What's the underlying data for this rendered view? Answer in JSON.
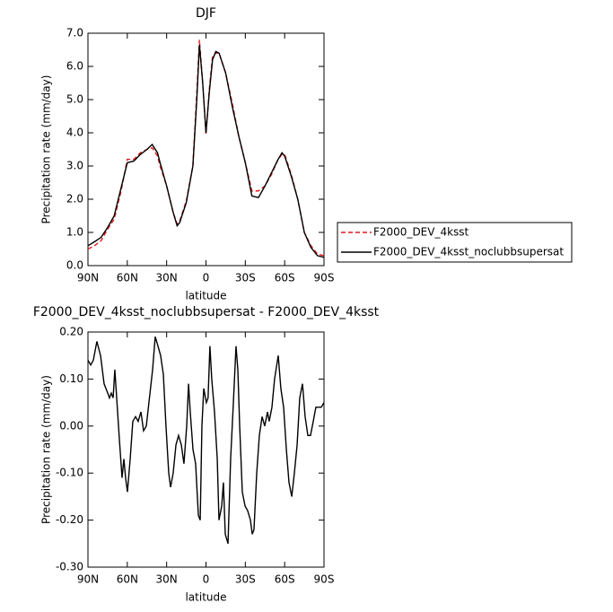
{
  "chart_data": [
    {
      "type": "line",
      "title": "DJF",
      "xlabel": "latitude",
      "ylabel": "Precipitation rate  (mm/day)",
      "x": [
        90,
        85,
        80,
        75,
        70,
        65,
        60,
        55,
        50,
        45,
        41,
        37,
        35,
        30,
        25,
        22,
        20,
        15,
        10,
        7,
        5,
        2.5,
        0,
        -2.5,
        -5,
        -7.5,
        -10,
        -15,
        -20,
        -25,
        -30,
        -35,
        -40,
        -45,
        -50,
        -55,
        -58,
        -60,
        -65,
        -70,
        -75,
        -80,
        -85,
        -90
      ],
      "series": [
        {
          "name": "F2000_DEV_4ksst",
          "color": "#e0191b",
          "dashed": true,
          "values": [
            0.5,
            0.6,
            0.75,
            1.1,
            1.4,
            2.2,
            3.2,
            3.2,
            3.4,
            3.5,
            3.55,
            3.3,
            3.0,
            2.4,
            1.6,
            1.25,
            1.35,
            1.95,
            3.0,
            5.2,
            6.8,
            5.5,
            3.95,
            5.3,
            6.3,
            6.4,
            6.4,
            5.8,
            4.9,
            3.9,
            3.1,
            2.25,
            2.25,
            2.4,
            2.75,
            3.2,
            3.35,
            3.35,
            2.75,
            2.0,
            1.0,
            0.6,
            0.35,
            0.3
          ]
        },
        {
          "name": "F2000_DEV_4ksst_noclubbsupersat",
          "color": "#000000",
          "dashed": false,
          "values": [
            0.6,
            0.72,
            0.85,
            1.15,
            1.5,
            2.3,
            3.1,
            3.15,
            3.35,
            3.5,
            3.65,
            3.4,
            3.1,
            2.4,
            1.6,
            1.2,
            1.3,
            1.9,
            3.0,
            5.0,
            6.65,
            5.5,
            4.0,
            5.2,
            6.2,
            6.45,
            6.4,
            5.8,
            4.8,
            3.9,
            3.1,
            2.1,
            2.05,
            2.4,
            2.8,
            3.2,
            3.4,
            3.3,
            2.7,
            2.0,
            1.0,
            0.55,
            0.3,
            0.25
          ]
        }
      ],
      "xlim": [
        90,
        -90
      ],
      "xticks": [
        {
          "value": 90,
          "label": "90N"
        },
        {
          "value": 60,
          "label": "60N"
        },
        {
          "value": 30,
          "label": "30N"
        },
        0,
        {
          "value": -30,
          "label": "30S"
        },
        {
          "value": -60,
          "label": "60S"
        },
        {
          "value": -90,
          "label": "90S"
        }
      ],
      "ylim": [
        0,
        7
      ],
      "yticks": [
        {
          "value": 0,
          "label": "0.0"
        },
        {
          "value": 1,
          "label": "1.0"
        },
        {
          "value": 2,
          "label": "2.0"
        },
        {
          "value": 3,
          "label": "3.0"
        },
        {
          "value": 4,
          "label": "4.0"
        },
        {
          "value": 5,
          "label": "5.0"
        },
        {
          "value": 6,
          "label": "6.0"
        },
        {
          "value": 7,
          "label": "7.0"
        }
      ],
      "legend": "outside-right"
    },
    {
      "type": "line",
      "title": "F2000_DEV_4ksst_noclubbsupersat - F2000_DEV_4ksst",
      "xlabel": "latitude",
      "ylabel": "Precipitation rate  (mm/day)",
      "x": [
        90.0,
        87.9,
        85.9,
        83.2,
        80.4,
        77.7,
        74.9,
        73.6,
        72.2,
        70.8,
        69.5,
        68.1,
        66.0,
        64.0,
        62.6,
        61.3,
        59.9,
        57.8,
        55.8,
        53.7,
        51.7,
        49.6,
        47.6,
        45.5,
        43.5,
        40.7,
        38.7,
        36.6,
        34.6,
        32.5,
        30.5,
        28.4,
        27.0,
        25.0,
        22.9,
        20.9,
        18.8,
        16.8,
        14.7,
        13.3,
        12.0,
        9.9,
        7.9,
        5.8,
        4.4,
        3.1,
        1.7,
        -0.3,
        -1.6,
        -3.0,
        -4.4,
        -6.5,
        -8.6,
        -9.9,
        -12.0,
        -13.3,
        -14.7,
        -16.8,
        -18.8,
        -20.9,
        -22.9,
        -24.3,
        -25.7,
        -27.7,
        -29.8,
        -31.8,
        -33.9,
        -35.3,
        -36.6,
        -38.7,
        -40.7,
        -42.8,
        -44.8,
        -46.9,
        -48.2,
        -50.3,
        -52.3,
        -55.1,
        -57.1,
        -59.2,
        -61.3,
        -63.3,
        -65.4,
        -67.4,
        -69.5,
        -71.5,
        -73.6,
        -75.6,
        -77.7,
        -79.7,
        -81.8,
        -83.8,
        -85.9,
        -87.9,
        -90.0
      ],
      "series": [
        {
          "name": "F2000_DEV_4ksst_noclubbsupersat - F2000_DEV_4ksst",
          "color": "#000000",
          "dashed": false,
          "values": [
            0.14,
            0.13,
            0.14,
            0.18,
            0.15,
            0.09,
            0.07,
            0.06,
            0.07,
            0.06,
            0.12,
            0.06,
            -0.03,
            -0.11,
            -0.07,
            -0.11,
            -0.14,
            -0.07,
            0.01,
            0.02,
            0.01,
            0.03,
            -0.01,
            0.0,
            0.05,
            0.12,
            0.19,
            0.17,
            0.15,
            0.11,
            0.0,
            -0.1,
            -0.13,
            -0.1,
            -0.04,
            -0.02,
            -0.04,
            -0.08,
            0.0,
            0.09,
            0.03,
            -0.05,
            -0.08,
            -0.19,
            -0.2,
            0.0,
            0.08,
            0.05,
            0.06,
            0.17,
            0.1,
            0.03,
            -0.07,
            -0.2,
            -0.17,
            -0.12,
            -0.23,
            -0.25,
            -0.07,
            0.05,
            0.17,
            0.12,
            0.0,
            -0.14,
            -0.17,
            -0.18,
            -0.2,
            -0.23,
            -0.22,
            -0.1,
            -0.02,
            0.02,
            0.0,
            0.03,
            0.01,
            0.04,
            0.1,
            0.15,
            0.08,
            0.04,
            -0.05,
            -0.12,
            -0.15,
            -0.1,
            -0.04,
            0.06,
            0.09,
            0.02,
            -0.02,
            -0.02,
            0.01,
            0.04,
            0.04,
            0.04,
            0.05
          ]
        }
      ],
      "xlim": [
        90,
        -90
      ],
      "xticks": [
        {
          "value": 90,
          "label": "90N"
        },
        {
          "value": 60,
          "label": "60N"
        },
        {
          "value": 30,
          "label": "30N"
        },
        0,
        {
          "value": -30,
          "label": "30S"
        },
        {
          "value": -60,
          "label": "60S"
        },
        {
          "value": -90,
          "label": "90S"
        }
      ],
      "ylim": [
        -0.3,
        0.2
      ],
      "yticks": [
        {
          "value": -0.3,
          "label": "-0.30"
        },
        {
          "value": -0.2,
          "label": "-0.20"
        },
        {
          "value": -0.1,
          "label": "-0.10"
        },
        {
          "value": 0,
          "label": "0.00"
        },
        {
          "value": 0.1,
          "label": "0.10"
        },
        {
          "value": 0.2,
          "label": "0.20"
        }
      ]
    }
  ]
}
